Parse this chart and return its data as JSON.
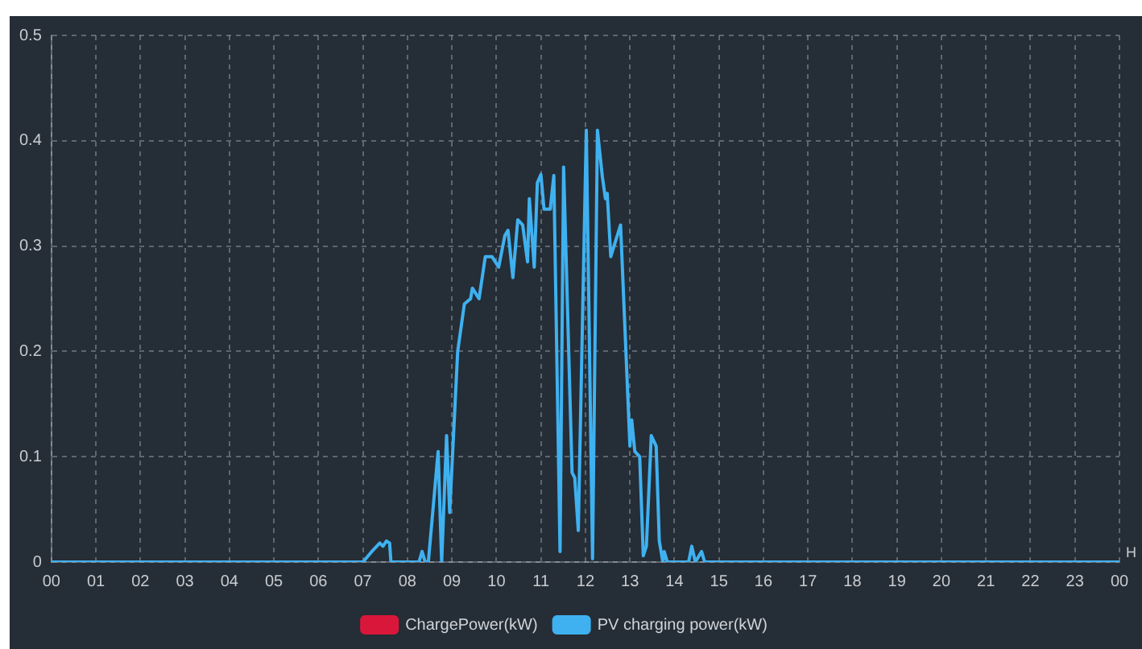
{
  "chart_data": {
    "type": "line",
    "xlabel": "H",
    "xlim": [
      0,
      24
    ],
    "xticks": [
      {
        "value": 0,
        "label": "00"
      },
      {
        "value": 1,
        "label": "01"
      },
      {
        "value": 2,
        "label": "02"
      },
      {
        "value": 3,
        "label": "03"
      },
      {
        "value": 4,
        "label": "04"
      },
      {
        "value": 5,
        "label": "05"
      },
      {
        "value": 6,
        "label": "06"
      },
      {
        "value": 7,
        "label": "07"
      },
      {
        "value": 8,
        "label": "08"
      },
      {
        "value": 9,
        "label": "09"
      },
      {
        "value": 10,
        "label": "10"
      },
      {
        "value": 11,
        "label": "11"
      },
      {
        "value": 12,
        "label": "12"
      },
      {
        "value": 13,
        "label": "13"
      },
      {
        "value": 14,
        "label": "14"
      },
      {
        "value": 15,
        "label": "15"
      },
      {
        "value": 16,
        "label": "16"
      },
      {
        "value": 17,
        "label": "17"
      },
      {
        "value": 18,
        "label": "18"
      },
      {
        "value": 19,
        "label": "19"
      },
      {
        "value": 20,
        "label": "20"
      },
      {
        "value": 21,
        "label": "21"
      },
      {
        "value": 22,
        "label": "22"
      },
      {
        "value": 23,
        "label": "23"
      },
      {
        "value": 24,
        "label": "00"
      }
    ],
    "ylim": [
      0,
      0.5
    ],
    "yticks": [
      0,
      0.1,
      0.2,
      0.3,
      0.4,
      0.5
    ],
    "grid": true,
    "legend": "bottom",
    "marker": "none",
    "line_style": "solid",
    "series": [
      {
        "name": "ChargePower(kW)",
        "color": "#d9173a"
      },
      {
        "name": "PV charging power(kW)",
        "color": "#3fb1f0",
        "x": [
          0,
          7.0,
          7.2,
          7.38,
          7.45,
          7.53,
          7.6,
          7.63,
          8.26,
          8.33,
          8.4,
          8.47,
          8.69,
          8.77,
          8.88,
          8.95,
          9.13,
          9.28,
          9.42,
          9.46,
          9.61,
          9.75,
          9.9,
          10.05,
          10.19,
          10.26,
          10.37,
          10.48,
          10.59,
          10.7,
          10.74,
          10.85,
          10.92,
          11.0,
          11.07,
          11.21,
          11.29,
          11.43,
          11.51,
          11.7,
          11.76,
          11.84,
          12.02,
          12.16,
          12.27,
          12.38,
          12.45,
          12.49,
          12.57,
          12.79,
          13.0,
          13.04,
          13.11,
          13.22,
          13.3,
          13.37,
          13.48,
          13.59,
          13.66,
          13.74,
          13.77,
          13.84,
          14.32,
          14.39,
          14.47,
          14.61,
          14.68,
          24
        ],
        "values": [
          0,
          0,
          0.01,
          0.018,
          0.015,
          0.02,
          0.018,
          0,
          0,
          0.01,
          0,
          0,
          0.105,
          0,
          0.12,
          0.047,
          0.2,
          0.245,
          0.25,
          0.26,
          0.25,
          0.29,
          0.29,
          0.28,
          0.31,
          0.315,
          0.27,
          0.325,
          0.32,
          0.285,
          0.345,
          0.28,
          0.36,
          0.368,
          0.335,
          0.335,
          0.367,
          0.01,
          0.375,
          0.085,
          0.08,
          0.03,
          0.41,
          0.003,
          0.41,
          0.366,
          0.345,
          0.35,
          0.29,
          0.32,
          0.11,
          0.135,
          0.105,
          0.1,
          0.006,
          0.015,
          0.12,
          0.11,
          0.02,
          0,
          0.01,
          0,
          0,
          0.015,
          0,
          0.01,
          0,
          0
        ]
      }
    ]
  }
}
